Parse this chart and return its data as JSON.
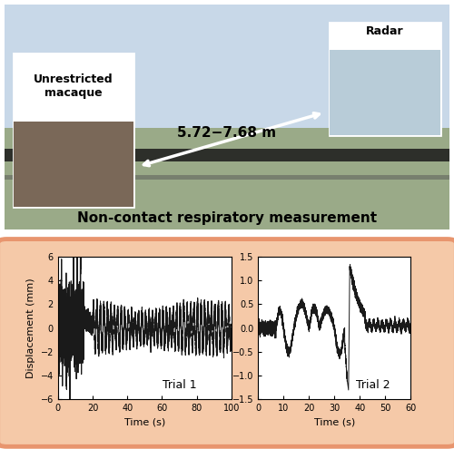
{
  "title_text": "Non-contact respiratory measurement",
  "title_fontsize": 11,
  "trial1_label": "Trial 1",
  "trial2_label": "Trial 2",
  "xlabel": "Time (s)",
  "ylabel": "Displacement (mm)",
  "trial1_xlim": [
    0,
    100
  ],
  "trial1_ylim": [
    -6,
    6
  ],
  "trial1_xticks": [
    0,
    20,
    40,
    60,
    80,
    100
  ],
  "trial1_yticks": [
    -6,
    -4,
    -2,
    0,
    2,
    4,
    6
  ],
  "trial2_xlim": [
    0,
    60
  ],
  "trial2_ylim": [
    -1.5,
    1.5
  ],
  "trial2_xticks": [
    0,
    10,
    20,
    30,
    40,
    50,
    60
  ],
  "trial2_yticks": [
    -1.5,
    -1.0,
    -0.5,
    0.0,
    0.5,
    1.0,
    1.5
  ],
  "panel_bg": "#f5c9a8",
  "plot_bg": "#ffffff",
  "line_color": "#1a1a1a",
  "line_width": 0.7,
  "distance_text": "5.72−7.68 m",
  "label_macaque": "Unrestricted\nmacaque",
  "label_radar": "Radar",
  "border_color": "#e8956e",
  "sky_color": "#c8d8e8",
  "ground_color": "#9aaa88",
  "fence_color": "#1a1a1a",
  "macaque_box_color": "#7a6858",
  "radar_box_color": "#b8ccd8"
}
